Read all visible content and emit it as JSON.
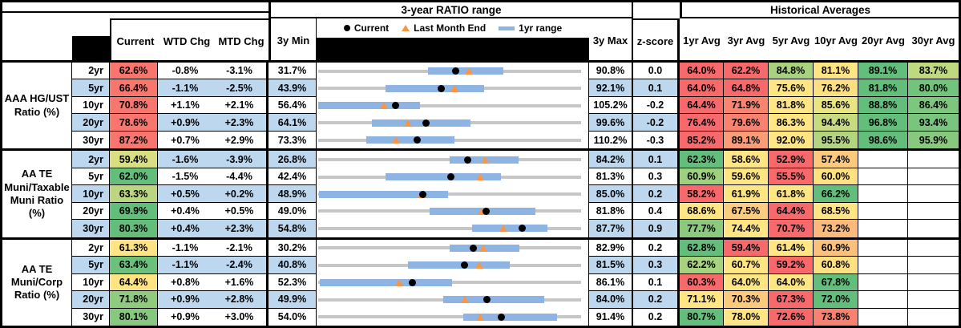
{
  "bands": {
    "ratio_range": "3-year RATIO range",
    "historical": "Historical Averages"
  },
  "columns": {
    "current": "Current",
    "wtd": "WTD Chg",
    "mtd": "MTD Chg",
    "min": "3y Min",
    "max": "3y Max",
    "z": "z-score",
    "avgs": [
      "1yr Avg",
      "3yr Avg",
      "5yr Avg",
      "10yr Avg",
      "20yr Avg",
      "30yr Avg"
    ]
  },
  "legend": {
    "current": "Current",
    "last_month_end": "Last Month End",
    "range": "1yr range"
  },
  "colors": {
    "zebra": "#BDD7EE",
    "bar_1yr": "#8EB4E3",
    "range_line": "#C6C6C6",
    "marker_current": "#000000",
    "marker_last_month": "#F79646",
    "heat_red": "#F8696B",
    "heat_yellow": "#FFE583",
    "heat_green": "#63BE7B",
    "header_black": "#000000"
  },
  "chart_data": {
    "type": "table",
    "note": "Each row shows a 3-year ratio range chart: gray line spans 3y Min to 3y Max, blue bar is the 1yr range, black dot is Current, orange triangle is Last Month End. Values in percent.",
    "groups": [
      {
        "label_lines": [
          "AAA HG/UST",
          "Ratio (%)"
        ],
        "rows": [
          {
            "tenor": "2yr",
            "current": {
              "text": "62.6%",
              "color": "#F8766D"
            },
            "wtd_chg": "-0.8%",
            "mtd_chg": "-3.1%",
            "min_3y": "31.7%",
            "max_3y": "90.8%",
            "z_score": "0.0",
            "chart": {
              "min": 31.7,
              "max": 90.8,
              "current": 62.6,
              "last_month_end": 65.7,
              "bar_1yr": [
                56.4,
                73.4
              ]
            },
            "avgs": [
              {
                "text": "64.0%",
                "color": "#F8696B"
              },
              {
                "text": "62.2%",
                "color": "#F8696B"
              },
              {
                "text": "84.8%",
                "color": "#A9D27F"
              },
              {
                "text": "81.1%",
                "color": "#FFE583"
              },
              {
                "text": "89.1%",
                "color": "#63BE7B"
              },
              {
                "text": "83.7%",
                "color": "#BFD981"
              }
            ]
          },
          {
            "tenor": "5yr",
            "current": {
              "text": "66.4%",
              "color": "#F8766D"
            },
            "wtd_chg": "-1.1%",
            "mtd_chg": "-2.5%",
            "min_3y": "43.9%",
            "max_3y": "92.1%",
            "z_score": "0.1",
            "chart": {
              "min": 43.9,
              "max": 92.1,
              "current": 66.4,
              "last_month_end": 68.9,
              "bar_1yr": [
                56.3,
                74.3
              ]
            },
            "avgs": [
              {
                "text": "64.0%",
                "color": "#F8696B"
              },
              {
                "text": "64.8%",
                "color": "#F8696B"
              },
              {
                "text": "75.6%",
                "color": "#FFE583"
              },
              {
                "text": "76.2%",
                "color": "#FBDF82"
              },
              {
                "text": "81.8%",
                "color": "#63BE7B"
              },
              {
                "text": "80.0%",
                "color": "#72C37C"
              }
            ]
          },
          {
            "tenor": "10yr",
            "current": {
              "text": "70.8%",
              "color": "#F8766D"
            },
            "wtd_chg": "+1.1%",
            "mtd_chg": "+2.1%",
            "min_3y": "56.4%",
            "max_3y": "105.2%",
            "z_score": "-0.2",
            "chart": {
              "min": 56.4,
              "max": 105.2,
              "current": 70.8,
              "last_month_end": 68.7,
              "bar_1yr": [
                56.4,
                75.3
              ]
            },
            "avgs": [
              {
                "text": "64.4%",
                "color": "#F8696B"
              },
              {
                "text": "71.9%",
                "color": "#F98570"
              },
              {
                "text": "81.8%",
                "color": "#FFE583"
              },
              {
                "text": "85.6%",
                "color": "#E9E583"
              },
              {
                "text": "88.8%",
                "color": "#63BE7B"
              },
              {
                "text": "86.4%",
                "color": "#7CC67D"
              }
            ]
          },
          {
            "tenor": "20yr",
            "current": {
              "text": "78.6%",
              "color": "#F8766D"
            },
            "wtd_chg": "+0.9%",
            "mtd_chg": "+2.3%",
            "min_3y": "64.1%",
            "max_3y": "99.6%",
            "z_score": "-0.2",
            "chart": {
              "min": 64.1,
              "max": 99.6,
              "current": 78.6,
              "last_month_end": 76.3,
              "bar_1yr": [
                71.3,
                84.7
              ]
            },
            "avgs": [
              {
                "text": "76.4%",
                "color": "#F8696B"
              },
              {
                "text": "79.6%",
                "color": "#F9816F"
              },
              {
                "text": "86.3%",
                "color": "#FFE583"
              },
              {
                "text": "94.4%",
                "color": "#C8DB81"
              },
              {
                "text": "96.8%",
                "color": "#63BE7B"
              },
              {
                "text": "93.4%",
                "color": "#7AC57D"
              }
            ]
          },
          {
            "tenor": "30yr",
            "current": {
              "text": "87.2%",
              "color": "#F8766D"
            },
            "wtd_chg": "+0.7%",
            "mtd_chg": "+2.9%",
            "min_3y": "73.3%",
            "max_3y": "110.2%",
            "z_score": "-0.3",
            "chart": {
              "min": 73.3,
              "max": 110.2,
              "current": 87.2,
              "last_month_end": 84.3,
              "bar_1yr": [
                80.1,
                92.4
              ]
            },
            "avgs": [
              {
                "text": "85.2%",
                "color": "#F8696B"
              },
              {
                "text": "89.1%",
                "color": "#FA9C75"
              },
              {
                "text": "92.0%",
                "color": "#FFE583"
              },
              {
                "text": "95.5%",
                "color": "#B4D580"
              },
              {
                "text": "98.6%",
                "color": "#63BE7B"
              },
              {
                "text": "95.9%",
                "color": "#88C97E"
              }
            ]
          }
        ]
      },
      {
        "label_lines": [
          "AA TE",
          "Muni/Taxable",
          "Muni Ratio",
          "(%)"
        ],
        "rows": [
          {
            "tenor": "2yr",
            "current": {
              "text": "59.4%",
              "color": "#D9DE82"
            },
            "wtd_chg": "-1.6%",
            "mtd_chg": "-3.9%",
            "min_3y": "26.8%",
            "max_3y": "84.2%",
            "z_score": "0.1",
            "chart": {
              "min": 26.8,
              "max": 84.2,
              "current": 59.4,
              "last_month_end": 63.3,
              "bar_1yr": [
                55.5,
                70.6
              ]
            },
            "avgs": [
              {
                "text": "62.3%",
                "color": "#63BE7B"
              },
              {
                "text": "58.6%",
                "color": "#FFE583"
              },
              {
                "text": "52.9%",
                "color": "#F8696B"
              },
              {
                "text": "57.4%",
                "color": "#FCC97D"
              },
              null,
              null
            ]
          },
          {
            "tenor": "5yr",
            "current": {
              "text": "62.0%",
              "color": "#63BE7B"
            },
            "wtd_chg": "-1.5%",
            "mtd_chg": "-4.4%",
            "min_3y": "42.4%",
            "max_3y": "81.3%",
            "z_score": "0.3",
            "chart": {
              "min": 42.4,
              "max": 81.3,
              "current": 62.0,
              "last_month_end": 66.4,
              "bar_1yr": [
                52.4,
                69.5
              ]
            },
            "avgs": [
              {
                "text": "60.9%",
                "color": "#9ED07F"
              },
              {
                "text": "59.6%",
                "color": "#FFE583"
              },
              {
                "text": "55.5%",
                "color": "#F8696B"
              },
              {
                "text": "60.0%",
                "color": "#FEE181"
              },
              null,
              null
            ]
          },
          {
            "tenor": "10yr",
            "current": {
              "text": "63.3%",
              "color": "#BAD680"
            },
            "wtd_chg": "+0.5%",
            "mtd_chg": "+0.2%",
            "min_3y": "48.9%",
            "max_3y": "85.0%",
            "z_score": "0.2",
            "chart": {
              "min": 48.9,
              "max": 85.0,
              "current": 63.3,
              "last_month_end": 63.1,
              "bar_1yr": [
                49.0,
                66.7
              ]
            },
            "avgs": [
              {
                "text": "58.2%",
                "color": "#F8696B"
              },
              {
                "text": "61.9%",
                "color": "#FFE583"
              },
              {
                "text": "61.8%",
                "color": "#FFE583"
              },
              {
                "text": "66.2%",
                "color": "#63BE7B"
              },
              null,
              null
            ]
          },
          {
            "tenor": "20yr",
            "current": {
              "text": "69.9%",
              "color": "#63BE7B"
            },
            "wtd_chg": "+0.4%",
            "mtd_chg": "+0.5%",
            "min_3y": "49.0%",
            "max_3y": "81.8%",
            "z_score": "0.4",
            "chart": {
              "min": 49.0,
              "max": 81.8,
              "current": 69.9,
              "last_month_end": 69.4,
              "bar_1yr": [
                62.9,
                76.1
              ]
            },
            "avgs": [
              {
                "text": "68.6%",
                "color": "#FFE583"
              },
              {
                "text": "67.5%",
                "color": "#FCCD7E"
              },
              {
                "text": "64.4%",
                "color": "#F8696B"
              },
              {
                "text": "68.5%",
                "color": "#FFE583"
              },
              null,
              null
            ]
          },
          {
            "tenor": "30yr",
            "current": {
              "text": "80.3%",
              "color": "#63BE7B"
            },
            "wtd_chg": "+0.4%",
            "mtd_chg": "+2.3%",
            "min_3y": "54.8%",
            "max_3y": "87.7%",
            "z_score": "0.9",
            "chart": {
              "min": 54.8,
              "max": 87.7,
              "current": 80.3,
              "last_month_end": 78.0,
              "bar_1yr": [
                74.1,
                83.5
              ]
            },
            "avgs": [
              {
                "text": "77.7%",
                "color": "#8BCA7E"
              },
              {
                "text": "74.4%",
                "color": "#FFE583"
              },
              {
                "text": "70.7%",
                "color": "#F8696B"
              },
              {
                "text": "73.2%",
                "color": "#FBBA7B"
              },
              null,
              null
            ]
          }
        ]
      },
      {
        "label_lines": [
          "AA TE",
          "Muni/Corp",
          "Ratio (%)"
        ],
        "rows": [
          {
            "tenor": "2yr",
            "current": {
              "text": "61.3%",
              "color": "#FFE483"
            },
            "wtd_chg": "-1.1%",
            "mtd_chg": "-2.1%",
            "min_3y": "30.2%",
            "max_3y": "82.9%",
            "z_score": "0.2",
            "chart": {
              "min": 30.2,
              "max": 82.9,
              "current": 61.3,
              "last_month_end": 63.4,
              "bar_1yr": [
                56.6,
                70.6
              ]
            },
            "avgs": [
              {
                "text": "62.8%",
                "color": "#63BE7B"
              },
              {
                "text": "59.4%",
                "color": "#F8696B"
              },
              {
                "text": "61.4%",
                "color": "#FFE583"
              },
              {
                "text": "60.9%",
                "color": "#FBC07C"
              },
              null,
              null
            ]
          },
          {
            "tenor": "5yr",
            "current": {
              "text": "63.4%",
              "color": "#6BC17C"
            },
            "wtd_chg": "-1.1%",
            "mtd_chg": "-2.4%",
            "min_3y": "40.8%",
            "max_3y": "81.5%",
            "z_score": "0.3",
            "chart": {
              "min": 40.8,
              "max": 81.5,
              "current": 63.4,
              "last_month_end": 65.8,
              "bar_1yr": [
                54.7,
                70.4
              ]
            },
            "avgs": [
              {
                "text": "62.2%",
                "color": "#A7D27F"
              },
              {
                "text": "60.7%",
                "color": "#FFE583"
              },
              {
                "text": "59.2%",
                "color": "#F8696B"
              },
              {
                "text": "60.8%",
                "color": "#FEE182"
              },
              null,
              null
            ]
          },
          {
            "tenor": "10yr",
            "current": {
              "text": "64.4%",
              "color": "#FFE483"
            },
            "wtd_chg": "+0.8%",
            "mtd_chg": "+1.6%",
            "min_3y": "52.3%",
            "max_3y": "86.1%",
            "z_score": "0.1",
            "chart": {
              "min": 52.3,
              "max": 86.1,
              "current": 64.4,
              "last_month_end": 62.8,
              "bar_1yr": [
                52.5,
                69.5
              ]
            },
            "avgs": [
              {
                "text": "60.3%",
                "color": "#F8696B"
              },
              {
                "text": "64.0%",
                "color": "#FFE583"
              },
              {
                "text": "64.0%",
                "color": "#FFE583"
              },
              {
                "text": "67.8%",
                "color": "#63BE7B"
              },
              null,
              null
            ]
          },
          {
            "tenor": "20yr",
            "current": {
              "text": "71.8%",
              "color": "#8FCB7E"
            },
            "wtd_chg": "+0.9%",
            "mtd_chg": "+2.8%",
            "min_3y": "49.9%",
            "max_3y": "84.0%",
            "z_score": "0.2",
            "chart": {
              "min": 49.9,
              "max": 84.0,
              "current": 71.8,
              "last_month_end": 69.0,
              "bar_1yr": [
                66.1,
                79.2
              ]
            },
            "avgs": [
              {
                "text": "71.1%",
                "color": "#FFE583"
              },
              {
                "text": "70.3%",
                "color": "#FCC97D"
              },
              {
                "text": "67.3%",
                "color": "#F8696B"
              },
              {
                "text": "72.0%",
                "color": "#63BE7B"
              },
              null,
              null
            ]
          },
          {
            "tenor": "30yr",
            "current": {
              "text": "80.1%",
              "color": "#86C87D"
            },
            "wtd_chg": "+0.9%",
            "mtd_chg": "+3.0%",
            "min_3y": "54.0%",
            "max_3y": "91.4%",
            "z_score": "0.2",
            "chart": {
              "min": 54.0,
              "max": 91.4,
              "current": 80.1,
              "last_month_end": 77.1,
              "bar_1yr": [
                74.6,
                88.0
              ]
            },
            "avgs": [
              {
                "text": "80.7%",
                "color": "#63BE7B"
              },
              {
                "text": "78.0%",
                "color": "#FFE583"
              },
              {
                "text": "72.6%",
                "color": "#F8696B"
              },
              {
                "text": "73.8%",
                "color": "#F9816F"
              },
              null,
              null
            ]
          }
        ]
      }
    ]
  }
}
